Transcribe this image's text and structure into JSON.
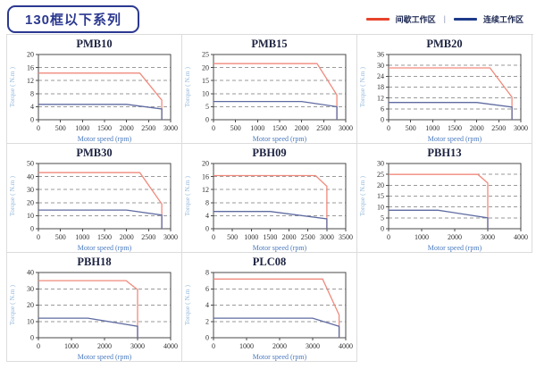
{
  "header": {
    "title": "130框以下系列"
  },
  "legend": {
    "intermittent": {
      "label": "间歇工作区"
    },
    "separator": "|",
    "continuous": {
      "label": "连续工作区"
    }
  },
  "colors": {
    "intermittent": "#f08a7c",
    "continuous": "#5f6ba1",
    "legend_intermittent": "#e8432c",
    "legend_continuous": "#1e3a8a",
    "header_navy": "#2b3990",
    "gridline": "#9a9a9a",
    "cell_border": "#dcdcdc"
  },
  "chart_data": [
    {
      "type": "line",
      "title": "PMB10",
      "xlabel": "Motor speed (rpm)",
      "ylabel": "Torque ( N.m )",
      "xlim": [
        0,
        3000
      ],
      "ylim": [
        0,
        20
      ],
      "xticks": [
        0,
        500,
        1000,
        1500,
        2000,
        2500,
        3000
      ],
      "yticks": [
        0,
        4,
        8,
        12,
        16,
        20
      ],
      "grid": "horizontal-dashed",
      "series": [
        {
          "name": "间歇工作区",
          "role": "intermittent",
          "points": [
            [
              0,
              14.3
            ],
            [
              2300,
              14.3
            ],
            [
              2800,
              6
            ],
            [
              2800,
              0
            ]
          ]
        },
        {
          "name": "连续工作区",
          "role": "continuous",
          "points": [
            [
              0,
              4.7
            ],
            [
              2000,
              4.7
            ],
            [
              2800,
              3.3
            ],
            [
              2800,
              0
            ]
          ]
        }
      ]
    },
    {
      "type": "line",
      "title": "PMB15",
      "xlabel": "Motor speed (rpm)",
      "ylabel": "Torque ( N.m )",
      "xlim": [
        0,
        3000
      ],
      "ylim": [
        0,
        25
      ],
      "xticks": [
        0,
        500,
        1000,
        1500,
        2000,
        2500,
        3000
      ],
      "yticks": [
        0,
        5,
        10,
        15,
        20,
        25
      ],
      "grid": "horizontal-dashed",
      "series": [
        {
          "name": "间歇工作区",
          "role": "intermittent",
          "points": [
            [
              0,
              21.5
            ],
            [
              2350,
              21.5
            ],
            [
              2800,
              9.5
            ],
            [
              2800,
              0
            ]
          ]
        },
        {
          "name": "连续工作区",
          "role": "continuous",
          "points": [
            [
              0,
              7
            ],
            [
              2000,
              7
            ],
            [
              2800,
              5
            ],
            [
              2800,
              0
            ]
          ]
        }
      ]
    },
    {
      "type": "line",
      "title": "PMB20",
      "xlabel": "Motor speed (rpm)",
      "ylabel": "Torque ( N.m )",
      "xlim": [
        0,
        3000
      ],
      "ylim": [
        0,
        36
      ],
      "xticks": [
        0,
        500,
        1000,
        1500,
        2000,
        2500,
        3000
      ],
      "yticks": [
        0,
        6,
        12,
        18,
        24,
        30,
        36
      ],
      "grid": "horizontal-dashed",
      "series": [
        {
          "name": "间歇工作区",
          "role": "intermittent",
          "points": [
            [
              0,
              28.6
            ],
            [
              2300,
              28.6
            ],
            [
              2800,
              12.5
            ],
            [
              2800,
              0
            ]
          ]
        },
        {
          "name": "连续工作区",
          "role": "continuous",
          "points": [
            [
              0,
              9.5
            ],
            [
              2000,
              9.5
            ],
            [
              2800,
              7
            ],
            [
              2800,
              0
            ]
          ]
        }
      ]
    },
    {
      "type": "line",
      "title": "PMB30",
      "xlabel": "Motor speed (rpm)",
      "ylabel": "Torque ( N.m )",
      "xlim": [
        0,
        3000
      ],
      "ylim": [
        0,
        50
      ],
      "xticks": [
        0,
        500,
        1000,
        1500,
        2000,
        2500,
        3000
      ],
      "yticks": [
        0,
        10,
        20,
        30,
        40,
        50
      ],
      "grid": "horizontal-dashed",
      "series": [
        {
          "name": "间歇工作区",
          "role": "intermittent",
          "points": [
            [
              0,
              43
            ],
            [
              2300,
              43
            ],
            [
              2800,
              19
            ],
            [
              2800,
              0
            ]
          ]
        },
        {
          "name": "连续工作区",
          "role": "continuous",
          "points": [
            [
              0,
              14.3
            ],
            [
              2000,
              14.3
            ],
            [
              2800,
              10.5
            ],
            [
              2800,
              0
            ]
          ]
        }
      ]
    },
    {
      "type": "line",
      "title": "PBH09",
      "xlabel": "Motor speed (rpm)",
      "ylabel": "Torque ( N.m )",
      "xlim": [
        0,
        3500
      ],
      "ylim": [
        0,
        20
      ],
      "xticks": [
        0,
        500,
        1000,
        1500,
        2000,
        2500,
        3000,
        3500
      ],
      "yticks": [
        0,
        4,
        8,
        12,
        16,
        20
      ],
      "grid": "horizontal-dashed",
      "series": [
        {
          "name": "间歇工作区",
          "role": "intermittent",
          "points": [
            [
              0,
              16.3
            ],
            [
              2700,
              16.3
            ],
            [
              3000,
              13
            ],
            [
              3000,
              0
            ]
          ]
        },
        {
          "name": "连续工作区",
          "role": "continuous",
          "points": [
            [
              0,
              5.3
            ],
            [
              1500,
              5.3
            ],
            [
              3000,
              3
            ],
            [
              3000,
              0
            ]
          ]
        }
      ]
    },
    {
      "type": "line",
      "title": "PBH13",
      "xlabel": "Motor speed (rpm)",
      "ylabel": "Torque ( N.m )",
      "xlim": [
        0,
        4000
      ],
      "ylim": [
        0,
        30
      ],
      "xticks": [
        0,
        1000,
        2000,
        3000,
        4000
      ],
      "yticks": [
        0,
        5,
        10,
        15,
        20,
        25,
        30
      ],
      "grid": "horizontal-dashed",
      "series": [
        {
          "name": "间歇工作区",
          "role": "intermittent",
          "points": [
            [
              0,
              25
            ],
            [
              2700,
              25
            ],
            [
              3000,
              21
            ],
            [
              3000,
              0
            ]
          ]
        },
        {
          "name": "连续工作区",
          "role": "continuous",
          "points": [
            [
              0,
              8.5
            ],
            [
              1500,
              8.5
            ],
            [
              3000,
              5
            ],
            [
              3000,
              0
            ]
          ]
        }
      ]
    },
    {
      "type": "line",
      "title": "PBH18",
      "xlabel": "Motor speed (rpm)",
      "ylabel": "Torque ( N.m )",
      "xlim": [
        0,
        4000
      ],
      "ylim": [
        0,
        40
      ],
      "xticks": [
        0,
        1000,
        2000,
        3000,
        4000
      ],
      "yticks": [
        0,
        10,
        20,
        30,
        40
      ],
      "grid": "horizontal-dashed",
      "series": [
        {
          "name": "间歇工作区",
          "role": "intermittent",
          "points": [
            [
              0,
              35
            ],
            [
              2650,
              35
            ],
            [
              3000,
              29.5
            ],
            [
              3000,
              0
            ]
          ]
        },
        {
          "name": "连续工作区",
          "role": "continuous",
          "points": [
            [
              0,
              12
            ],
            [
              1500,
              12
            ],
            [
              3000,
              7
            ],
            [
              3000,
              0
            ]
          ]
        }
      ]
    },
    {
      "type": "line",
      "title": "PLC08",
      "xlabel": "Motor speed (rpm)",
      "ylabel": "Torque ( N.m )",
      "xlim": [
        0,
        4000
      ],
      "ylim": [
        0,
        8
      ],
      "xticks": [
        0,
        1000,
        2000,
        3000,
        4000
      ],
      "yticks": [
        0,
        2,
        4,
        6,
        8
      ],
      "grid": "horizontal-dashed",
      "series": [
        {
          "name": "间歇工作区",
          "role": "intermittent",
          "points": [
            [
              0,
              7.2
            ],
            [
              3300,
              7.2
            ],
            [
              3800,
              2.8
            ],
            [
              3800,
              0
            ]
          ]
        },
        {
          "name": "连续工作区",
          "role": "continuous",
          "points": [
            [
              0,
              2.4
            ],
            [
              3000,
              2.4
            ],
            [
              3800,
              1.4
            ],
            [
              3800,
              0
            ]
          ]
        }
      ]
    }
  ]
}
